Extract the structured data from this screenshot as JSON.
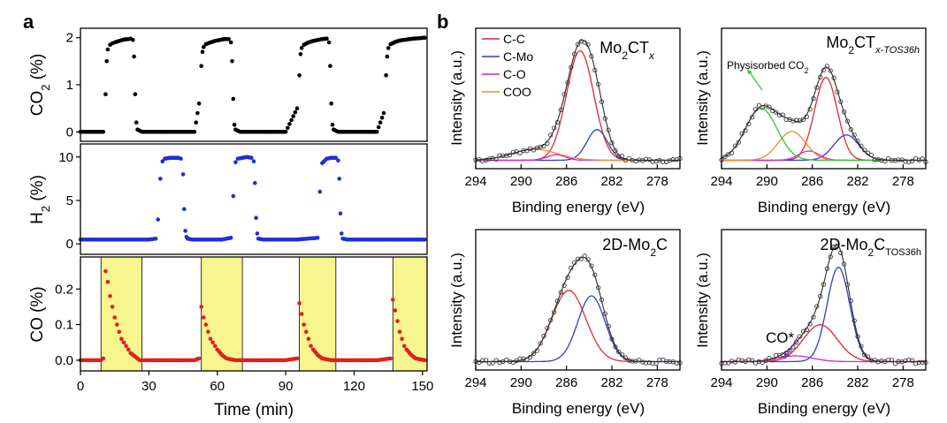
{
  "panel_a": {
    "label": "a",
    "xlabel": "Time (min)",
    "xticks": [
      "0",
      "30",
      "60",
      "90",
      "120",
      "150"
    ],
    "co2": {
      "ylabel": "CO",
      "ylabel_sub": "2",
      "ylabel_unit": " (%)",
      "yticks": [
        "0",
        "1",
        "2"
      ]
    },
    "h2": {
      "ylabel": "H",
      "ylabel_sub": "2",
      "ylabel_unit": " (%)",
      "yticks": [
        "0",
        "5",
        "10"
      ]
    },
    "co": {
      "ylabel": "CO (%)",
      "yticks": [
        "0.0",
        "0.1",
        "0.2"
      ]
    }
  },
  "panel_b": {
    "label": "b",
    "xlabel": "Binding energy (eV)",
    "ylabel": "Intensity (a.u.)",
    "xticks": [
      "294",
      "290",
      "286",
      "282",
      "278"
    ],
    "legend": [
      {
        "label": "C-C",
        "color": "#e8262b"
      },
      {
        "label": "C-Mo",
        "color": "#2b3fc9"
      },
      {
        "label": "C-O",
        "color": "#d126d6"
      },
      {
        "label": "COO",
        "color": "#f08a2a"
      }
    ],
    "titles": {
      "p1_main": "Mo",
      "p1_sub": "2",
      "p1_rest": "CT",
      "p1_x": "x",
      "p2_main": "Mo",
      "p2_sub": "2",
      "p2_rest": "CT",
      "p2_x": "x-TOS36h",
      "p3_main": "2D-Mo",
      "p3_sub": "2",
      "p3_rest": "C",
      "p4_main": "2D-Mo",
      "p4_sub": "2",
      "p4_rest": "C",
      "p4_x": "TOS36h"
    },
    "annotations": {
      "physisorbed": "Physisorbed CO",
      "physisorbed_sub": "2",
      "co_star": "CO*"
    }
  },
  "colors": {
    "co2": "#000000",
    "h2": "#1f2ed8",
    "co": "#e01f1f",
    "highlight": "#f6f58e",
    "cc": "#e8262b",
    "cmo": "#2b3fc9",
    "co_comp": "#d126d6",
    "coo": "#f08a2a",
    "phys": "#36c236",
    "envelope": "#3a3a3a"
  },
  "chart_data": [
    {
      "type": "scatter",
      "title": "",
      "xlabel": "Time (min)",
      "ylabel": "CO2 (%)",
      "xlim": [
        0,
        152
      ],
      "ylim": [
        -0.2,
        2.2
      ],
      "x": [
        0,
        5,
        10,
        11,
        11.5,
        12,
        13,
        14,
        15,
        17,
        19,
        21,
        22,
        23,
        23.5,
        24,
        24.5,
        25,
        27,
        35,
        45,
        50,
        52,
        53,
        53.5,
        54,
        55,
        57,
        59,
        61,
        63,
        65,
        66,
        66.5,
        67,
        67.5,
        68,
        70,
        80,
        90,
        95,
        96,
        96.5,
        97,
        98,
        100,
        102,
        104,
        106,
        108,
        109,
        109.5,
        110,
        110.5,
        111,
        113,
        120,
        130,
        133,
        134,
        134.5,
        135,
        136,
        138,
        140,
        143,
        146,
        149,
        151
      ],
      "y": [
        0,
        0,
        0,
        0.8,
        1.5,
        1.75,
        1.85,
        1.88,
        1.9,
        1.93,
        1.96,
        1.97,
        1.98,
        1.95,
        1.6,
        0.8,
        0.2,
        0.05,
        0,
        0,
        0,
        0,
        0.6,
        1.4,
        1.7,
        1.8,
        1.86,
        1.9,
        1.93,
        1.95,
        1.97,
        1.97,
        1.9,
        1.5,
        0.7,
        0.15,
        0.05,
        0,
        0,
        0,
        0.5,
        1.2,
        1.65,
        1.78,
        1.85,
        1.9,
        1.93,
        1.95,
        1.97,
        1.98,
        1.9,
        1.4,
        0.6,
        0.15,
        0.05,
        0,
        0,
        0,
        0.4,
        1.2,
        1.6,
        1.78,
        1.86,
        1.91,
        1.94,
        1.96,
        1.98,
        1.99,
        2.0
      ]
    },
    {
      "type": "scatter",
      "title": "",
      "xlabel": "Time (min)",
      "ylabel": "H2 (%)",
      "xlim": [
        0,
        152
      ],
      "ylim": [
        -1.2,
        11.5
      ],
      "x": [
        0,
        10,
        20,
        30,
        33,
        34,
        35,
        36,
        37,
        39,
        41,
        43,
        44,
        45,
        45.5,
        46,
        46.5,
        47,
        49,
        55,
        62,
        66,
        67,
        68,
        69,
        71,
        73,
        75,
        76,
        76.5,
        77,
        77.5,
        78,
        80,
        85,
        95,
        104,
        105,
        106,
        108,
        110,
        112,
        113,
        113.5,
        114,
        114.5,
        115,
        117,
        125,
        135,
        145,
        151
      ],
      "y": [
        0.5,
        0.5,
        0.5,
        0.5,
        0.6,
        2.8,
        7.5,
        9.5,
        9.8,
        9.9,
        9.9,
        9.9,
        9.8,
        8,
        4,
        1.5,
        0.8,
        0.6,
        0.5,
        0.5,
        0.5,
        0.7,
        5.5,
        9.4,
        9.8,
        9.9,
        10,
        9.9,
        9.5,
        7,
        3,
        1.2,
        0.6,
        0.5,
        0.5,
        0.5,
        0.7,
        6,
        9.3,
        9.8,
        9.9,
        9.9,
        9.6,
        7.5,
        3.5,
        1.2,
        0.6,
        0.5,
        0.5,
        0.5,
        0.5,
        0.5
      ]
    },
    {
      "type": "scatter",
      "title": "",
      "xlabel": "Time (min)",
      "ylabel": "CO (%)",
      "xlim": [
        0,
        152
      ],
      "ylim": [
        -0.03,
        0.29
      ],
      "x": [
        0,
        5,
        9,
        10,
        11,
        12,
        13,
        14,
        15,
        16,
        17,
        18,
        19,
        20,
        21,
        22,
        24,
        26,
        30,
        40,
        50,
        52,
        53,
        54,
        55,
        56,
        57,
        58,
        59,
        60,
        62,
        64,
        68,
        80,
        90,
        95,
        96,
        97,
        98,
        99,
        100,
        101,
        102,
        104,
        106,
        110,
        120,
        130,
        136,
        137,
        138,
        139,
        140,
        141,
        142,
        143,
        145,
        147,
        151
      ],
      "y": [
        0,
        0,
        0,
        0.005,
        0.25,
        0.22,
        0.18,
        0.15,
        0.12,
        0.1,
        0.08,
        0.06,
        0.05,
        0.04,
        0.03,
        0.02,
        0.01,
        0,
        0,
        0,
        0,
        0.005,
        0.15,
        0.12,
        0.1,
        0.08,
        0.06,
        0.05,
        0.04,
        0.03,
        0.015,
        0.005,
        0,
        0,
        0,
        0.005,
        0.16,
        0.13,
        0.1,
        0.08,
        0.06,
        0.04,
        0.03,
        0.015,
        0.005,
        0,
        0,
        0,
        0.005,
        0.17,
        0.14,
        0.11,
        0.08,
        0.06,
        0.04,
        0.03,
        0.015,
        0.005,
        0
      ],
      "highlight_regions": [
        [
          9,
          27
        ],
        [
          53,
          71
        ],
        [
          96,
          112
        ],
        [
          137,
          152
        ]
      ]
    },
    {
      "type": "line",
      "title": "Mo2CTx",
      "xlabel": "Binding energy (eV)",
      "ylabel": "Intensity (a.u.)",
      "xlim": [
        294,
        276
      ],
      "xreversed": true,
      "series": [
        {
          "name": "C-C",
          "center": 284.8,
          "amplitude": 1.0,
          "width": 1.2
        },
        {
          "name": "C-Mo",
          "center": 283.3,
          "amplitude": 0.28,
          "width": 0.9
        },
        {
          "name": "C-O",
          "center": 286.9,
          "amplitude": 0.05,
          "width": 0.8
        },
        {
          "name": "COO",
          "center": 288.8,
          "amplitude": 0.1,
          "width": 2.0
        }
      ]
    },
    {
      "type": "line",
      "title": "Mo2CTx-TOS36h",
      "xlabel": "Binding energy (eV)",
      "ylabel": "Intensity (a.u.)",
      "xlim": [
        294,
        276
      ],
      "xreversed": true,
      "series": [
        {
          "center": 284.8,
          "amplitude": 0.72,
          "width": 1.0
        },
        {
          "center": 283.0,
          "amplitude": 0.22,
          "width": 1.1
        },
        {
          "center": 286.3,
          "amplitude": 0.08,
          "width": 0.9
        },
        {
          "center": 287.8,
          "amplitude": 0.25,
          "width": 1.2
        },
        {
          "name": "Physisorbed CO2",
          "center": 290.5,
          "amplitude": 0.45,
          "width": 1.4
        }
      ]
    },
    {
      "type": "line",
      "title": "2D-Mo2C",
      "xlabel": "Binding energy (eV)",
      "ylabel": "Intensity (a.u.)",
      "xlim": [
        294,
        276
      ],
      "xreversed": true,
      "series": [
        {
          "center": 285.8,
          "amplitude": 0.65,
          "width": 1.5
        },
        {
          "center": 283.8,
          "amplitude": 0.6,
          "width": 1.2
        }
      ]
    },
    {
      "type": "line",
      "title": "2D-Mo2CTOS36h",
      "xlabel": "Binding energy (eV)",
      "ylabel": "Intensity (a.u.)",
      "xlim": [
        294,
        276
      ],
      "xreversed": true,
      "series": [
        {
          "center": 283.7,
          "amplitude": 0.82,
          "width": 1.0
        },
        {
          "center": 285.3,
          "amplitude": 0.32,
          "width": 1.5
        },
        {
          "name": "CO*",
          "center": 287.5,
          "amplitude": 0.05,
          "width": 1.5
        }
      ]
    }
  ]
}
